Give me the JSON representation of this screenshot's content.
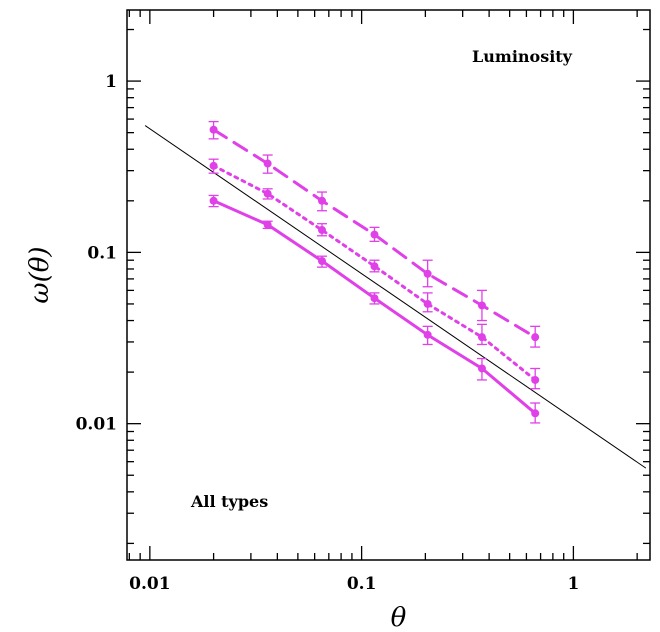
{
  "chart_data": {
    "type": "line",
    "xscale": "log",
    "yscale": "log",
    "xlim": [
      0.0078,
      2.3
    ],
    "ylim": [
      0.0016,
      2.6
    ],
    "xlabel": "θ",
    "ylabel": "ω(θ)",
    "x_ticklabels": [
      {
        "value": 0.01,
        "label": "0.01"
      },
      {
        "value": 0.1,
        "label": "0.1"
      },
      {
        "value": 1,
        "label": "1"
      }
    ],
    "y_ticklabels": [
      {
        "value": 0.01,
        "label": "0.01"
      },
      {
        "value": 0.1,
        "label": "0.1"
      },
      {
        "value": 1,
        "label": "1"
      }
    ],
    "annotations": {
      "top_right": "Luminosity",
      "bottom_left": "All types"
    },
    "series_color": "#e040e8",
    "series": [
      {
        "style": "dashed",
        "x": [
          0.02,
          0.036,
          0.065,
          0.115,
          0.205,
          0.37,
          0.66
        ],
        "y": [
          0.52,
          0.33,
          0.2,
          0.127,
          0.075,
          0.049,
          0.032
        ],
        "yerr_low": [
          0.46,
          0.29,
          0.175,
          0.116,
          0.063,
          0.04,
          0.028
        ],
        "yerr_high": [
          0.58,
          0.37,
          0.225,
          0.14,
          0.09,
          0.06,
          0.037
        ]
      },
      {
        "style": "dotted",
        "x": [
          0.02,
          0.036,
          0.065,
          0.115,
          0.205,
          0.37,
          0.66
        ],
        "y": [
          0.32,
          0.22,
          0.135,
          0.083,
          0.05,
          0.032,
          0.018
        ],
        "yerr_low": [
          0.29,
          0.205,
          0.125,
          0.077,
          0.045,
          0.029,
          0.016
        ],
        "yerr_high": [
          0.35,
          0.235,
          0.147,
          0.09,
          0.058,
          0.038,
          0.021
        ]
      },
      {
        "style": "solid",
        "x": [
          0.02,
          0.036,
          0.065,
          0.115,
          0.205,
          0.37,
          0.66
        ],
        "y": [
          0.2,
          0.145,
          0.089,
          0.054,
          0.033,
          0.021,
          0.0115
        ],
        "yerr_low": [
          0.185,
          0.138,
          0.082,
          0.05,
          0.029,
          0.018,
          0.0101
        ],
        "yerr_high": [
          0.215,
          0.152,
          0.095,
          0.058,
          0.037,
          0.024,
          0.0132
        ]
      }
    ],
    "reference_line": {
      "color": "#000000",
      "x": [
        0.0095,
        2.2
      ],
      "y": [
        0.55,
        0.0055
      ]
    }
  }
}
